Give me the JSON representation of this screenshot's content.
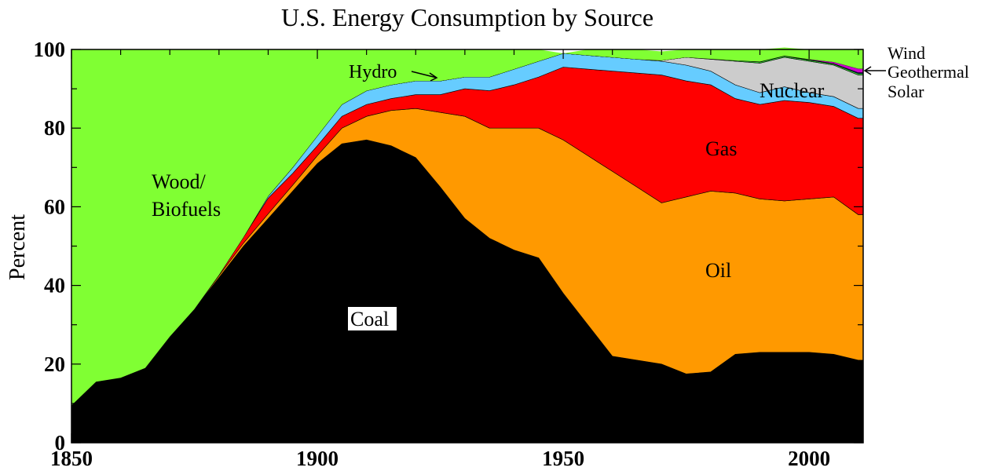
{
  "chart_data": {
    "type": "area",
    "stacked": true,
    "title": "U.S. Energy Consumption by Source",
    "ylabel": "Percent",
    "xlabel": "",
    "xlim": [
      1850,
      2011
    ],
    "ylim": [
      0,
      100
    ],
    "x_ticks": [
      1850,
      1900,
      1950,
      2000
    ],
    "y_ticks": [
      0,
      20,
      40,
      60,
      80,
      100
    ],
    "grid": false,
    "x": [
      1850,
      1855,
      1860,
      1865,
      1870,
      1875,
      1880,
      1885,
      1890,
      1895,
      1900,
      1905,
      1910,
      1915,
      1920,
      1925,
      1930,
      1935,
      1940,
      1945,
      1950,
      1955,
      1960,
      1965,
      1970,
      1975,
      1980,
      1985,
      1990,
      1995,
      2000,
      2005,
      2010
    ],
    "series": [
      {
        "name": "Coal",
        "color": "#000000",
        "values": [
          9.5,
          15.5,
          16.5,
          19,
          27,
          34,
          42,
          50,
          57,
          64,
          71,
          76,
          77,
          75.5,
          72.5,
          65,
          57,
          52,
          49,
          47,
          38,
          30,
          22,
          21,
          20,
          17.5,
          18,
          22.5,
          23,
          23,
          23,
          22.5,
          21
        ]
      },
      {
        "name": "Oil",
        "color": "#ff9900",
        "values": [
          0,
          0,
          0,
          0,
          0,
          0,
          0.5,
          0.8,
          1.2,
          1.5,
          2,
          4,
          6,
          9,
          12.5,
          19,
          26,
          28,
          31,
          33,
          39,
          43,
          47,
          44,
          41,
          45,
          46,
          41,
          39,
          38.5,
          39,
          40,
          37
        ]
      },
      {
        "name": "Gas",
        "color": "#ff0000",
        "values": [
          0,
          0,
          0,
          0,
          0,
          0,
          0.2,
          1.5,
          4,
          3,
          2.5,
          3,
          3,
          3,
          3.5,
          4.5,
          7,
          9.5,
          11,
          13,
          18.5,
          22,
          25.5,
          29,
          32.5,
          29.5,
          27,
          24,
          24,
          25.5,
          24.5,
          23,
          24.5
        ]
      },
      {
        "name": "Hydro",
        "color": "#66ccff",
        "values": [
          0,
          0,
          0,
          0,
          0,
          0,
          0,
          0,
          0.5,
          1.5,
          2.5,
          3,
          3.5,
          3.5,
          3.5,
          3.5,
          3,
          3.5,
          4,
          4,
          3.5,
          3.5,
          3.5,
          3.5,
          3.5,
          4,
          3.5,
          3.5,
          3,
          3.5,
          2.5,
          2.5,
          2.5
        ]
      },
      {
        "name": "Nuclear",
        "color": "#cccccc",
        "values": [
          0,
          0,
          0,
          0,
          0,
          0,
          0,
          0,
          0,
          0,
          0,
          0,
          0,
          0,
          0,
          0,
          0,
          0,
          0,
          0,
          0,
          0,
          0,
          0,
          0.2,
          2,
          3,
          6,
          7.5,
          7.5,
          8,
          8,
          8.5
        ]
      },
      {
        "name": "Geothermal",
        "color": "#33cc33",
        "values": [
          0,
          0,
          0,
          0,
          0,
          0,
          0,
          0,
          0,
          0,
          0,
          0,
          0,
          0,
          0,
          0,
          0,
          0,
          0,
          0,
          0,
          0,
          0,
          0,
          0,
          0,
          0.1,
          0.2,
          0.3,
          0.3,
          0.3,
          0.3,
          0.4
        ]
      },
      {
        "name": "Solar",
        "color": "#0000cc",
        "values": [
          0,
          0,
          0,
          0,
          0,
          0,
          0,
          0,
          0,
          0,
          0,
          0,
          0,
          0,
          0,
          0,
          0,
          0,
          0,
          0,
          0,
          0,
          0,
          0,
          0,
          0,
          0,
          0,
          0.1,
          0.1,
          0.1,
          0.1,
          0.2
        ]
      },
      {
        "name": "Wind",
        "color": "#cc00cc",
        "values": [
          0,
          0,
          0,
          0,
          0,
          0,
          0,
          0,
          0,
          0,
          0,
          0,
          0,
          0,
          0,
          0,
          0,
          0,
          0,
          0,
          0,
          0,
          0,
          0,
          0,
          0,
          0,
          0,
          0,
          0,
          0.1,
          0.4,
          1
        ]
      },
      {
        "name": "Wood/ Biofuels",
        "color": "#80ff33",
        "values": [
          90.5,
          84.5,
          83.5,
          81,
          73,
          66,
          57.3,
          47.7,
          37.3,
          30,
          22,
          14,
          10.5,
          9,
          8,
          8,
          7,
          7,
          5,
          3,
          0,
          1.5,
          2,
          2.5,
          2.3,
          2,
          2.4,
          2.8,
          3.1,
          2.1,
          2.5,
          3.2,
          4.9
        ]
      }
    ],
    "annotations": [
      {
        "text": "Wood/",
        "series": "Wood/ Biofuels"
      },
      {
        "text": "Biofuels",
        "series": "Wood/ Biofuels"
      },
      {
        "text": "Hydro",
        "series": "Hydro"
      },
      {
        "text": "Nuclear",
        "series": "Nuclear"
      },
      {
        "text": "Gas",
        "series": "Gas"
      },
      {
        "text": "Oil",
        "series": "Oil"
      },
      {
        "text": "Coal",
        "series": "Coal"
      },
      {
        "text": "Wind",
        "series": "Wind"
      },
      {
        "text": "Geothermal",
        "series": "Geothermal"
      },
      {
        "text": "Solar",
        "series": "Solar"
      }
    ]
  }
}
